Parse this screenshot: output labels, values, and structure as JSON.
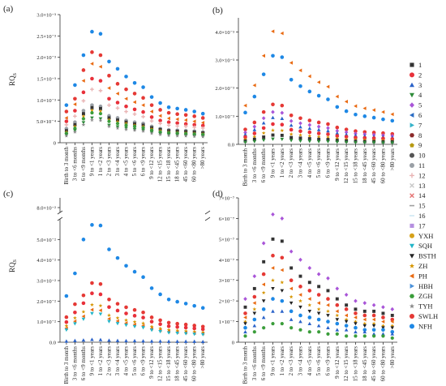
{
  "age_groups": [
    "Birth to 3 month",
    "3 to <6 months",
    "6 to <9 months",
    "9 to <1 years",
    "1 to <2 years",
    "2 to <3 years",
    "3 to <4 years",
    "4 to <5 years",
    "5 to <6 years",
    "6 to <9 years",
    "9 to <12 years",
    "12 to <15 years",
    "15 to <18 years",
    "18 to <45 years",
    "45 to <60 years",
    "60 to <80 years",
    ">80 years"
  ],
  "legend": [
    {
      "label": "1",
      "color": "#333333",
      "shape": "square"
    },
    {
      "label": "2",
      "color": "#e8303a",
      "shape": "circle"
    },
    {
      "label": "3",
      "color": "#2a62c9",
      "shape": "triangle-up"
    },
    {
      "label": "4",
      "color": "#2e8b3a",
      "shape": "triangle-down"
    },
    {
      "label": "5",
      "color": "#a955d8",
      "shape": "diamond"
    },
    {
      "label": "6",
      "color": "#2b6cc4",
      "shape": "triangle-left"
    },
    {
      "label": "7",
      "color": "#36b3c9",
      "shape": "triangle-right"
    },
    {
      "label": "8",
      "color": "#8b2a2a",
      "shape": "hexagon"
    },
    {
      "label": "9",
      "color": "#b79a12",
      "shape": "pentagon"
    },
    {
      "label": "10",
      "color": "#555555",
      "shape": "circle"
    },
    {
      "label": "11",
      "color": "#9aa0a6",
      "shape": "circle"
    },
    {
      "label": "12",
      "color": "#e9b4b4",
      "shape": "plus"
    },
    {
      "label": "13",
      "color": "#c8c8c8",
      "shape": "x"
    },
    {
      "label": "14",
      "color": "#e57373",
      "shape": "x"
    },
    {
      "label": "15",
      "color": "#a0a0a0",
      "shape": "dash"
    },
    {
      "label": "16",
      "color": "#cfe8f4",
      "shape": "dash"
    },
    {
      "label": "17",
      "color": "#b58fe0",
      "shape": "square"
    },
    {
      "label": "YXH",
      "color": "#d6a11a",
      "shape": "circle"
    },
    {
      "label": "SQH",
      "color": "#22b5c8",
      "shape": "triangle-down"
    },
    {
      "label": "BSTH",
      "color": "#222222",
      "shape": "triangle-down"
    },
    {
      "label": "ZH",
      "color": "#d59500",
      "shape": "star"
    },
    {
      "label": "PH",
      "color": "#e96a12",
      "shape": "triangle-left"
    },
    {
      "label": "HBH",
      "color": "#4a90d9",
      "shape": "triangle-right"
    },
    {
      "label": "ZGH",
      "color": "#3a9d3a",
      "shape": "hexagon"
    },
    {
      "label": "TYH",
      "color": "#8a8a8a",
      "shape": "star"
    },
    {
      "label": "SWLH",
      "color": "#e53935",
      "shape": "circle"
    },
    {
      "label": "NFH",
      "color": "#1e88e5",
      "shape": "circle"
    }
  ],
  "chart_data": [
    {
      "panel_label": "(a)",
      "type": "scatter",
      "ylabel": "RQS",
      "ylim": [
        0,
        0.003
      ],
      "yticks": [
        0,
        0.0005,
        0.001,
        0.0015,
        0.002,
        0.0025,
        0.003
      ],
      "ytick_labels": [
        "0",
        "5.0×10⁻⁴",
        "1.0×10⁻³",
        "1.5×10⁻³",
        "2.0×10⁻³",
        "2.5×10⁻³",
        "3.0×10⁻³"
      ],
      "series": [
        {
          "name": "NFH",
          "values": [
            0.00088,
            0.00135,
            0.00205,
            0.0026,
            0.00255,
            0.0019,
            0.00173,
            0.00155,
            0.0014,
            0.0013,
            0.00107,
            0.00093,
            0.00083,
            0.0008,
            0.00077,
            0.00073,
            0.00068
          ]
        },
        {
          "name": "SWLH",
          "values": [
            0.00073,
            0.00103,
            0.0017,
            0.00212,
            0.00205,
            0.00157,
            0.00138,
            0.00125,
            0.00115,
            0.00105,
            0.00088,
            0.00077,
            0.0007,
            0.00067,
            0.00065,
            0.00062,
            0.00058
          ]
        },
        {
          "name": "PH",
          "values": [
            0.00058,
            0.0009,
            0.00145,
            0.00185,
            0.00178,
            0.00128,
            0.00115,
            0.00103,
            0.00095,
            0.00088,
            0.00073,
            0.00063,
            0.00057,
            0.00055,
            0.00053,
            0.0005,
            0.00047
          ]
        },
        {
          "name": "2",
          "values": [
            0.0005,
            0.00075,
            0.00118,
            0.0015,
            0.00145,
            0.00103,
            0.00094,
            0.00085,
            0.00078,
            0.00072,
            0.0006,
            0.00052,
            0.00048,
            0.00046,
            0.00044,
            0.00042,
            0.0004
          ]
        },
        {
          "name": "12",
          "values": [
            0.00042,
            0.00062,
            0.00098,
            0.00125,
            0.00122,
            0.00088,
            0.00081,
            0.00073,
            0.00067,
            0.00061,
            0.00051,
            0.00045,
            0.00041,
            0.00039,
            0.00038,
            0.00036,
            0.00034
          ]
        },
        {
          "name": "11",
          "values": [
            0.00033,
            0.00048,
            0.00075,
            0.00088,
            0.00085,
            0.00063,
            0.00058,
            0.00052,
            0.00048,
            0.00045,
            0.00038,
            0.00033,
            0.0003,
            0.00029,
            0.00028,
            0.00027,
            0.00025
          ]
        },
        {
          "name": "1",
          "values": [
            0.00028,
            0.00042,
            0.00068,
            0.00082,
            0.0008,
            0.00058,
            0.00053,
            0.00048,
            0.00044,
            0.00041,
            0.00035,
            0.00031,
            0.00028,
            0.00027,
            0.00026,
            0.00025,
            0.00023
          ]
        },
        {
          "name": "ZH",
          "values": [
            0.00025,
            0.00038,
            0.00062,
            0.00076,
            0.00074,
            0.00054,
            0.00049,
            0.00045,
            0.00041,
            0.00038,
            0.00032,
            0.00028,
            0.00025,
            0.00024,
            0.00023,
            0.00022,
            0.00021
          ]
        },
        {
          "name": "ZGH",
          "values": [
            0.00022,
            0.00034,
            0.00056,
            0.0007,
            0.00068,
            0.0005,
            0.00045,
            0.00041,
            0.00038,
            0.00035,
            0.00029,
            0.00025,
            0.00023,
            0.00022,
            0.00021,
            0.0002,
            0.00019
          ]
        },
        {
          "name": "4",
          "values": [
            0.00018,
            0.00028,
            0.00047,
            0.00058,
            0.00056,
            0.00041,
            0.00037,
            0.00034,
            0.00031,
            0.00029,
            0.00024,
            0.00021,
            0.00019,
            0.00018,
            0.00017,
            0.00016,
            0.00015
          ]
        },
        {
          "name": "TYH",
          "values": [
            0.00016,
            0.00025,
            0.00042,
            0.00053,
            0.00052,
            0.00038,
            0.00034,
            0.00031,
            0.00029,
            0.00027,
            0.00022,
            0.00019,
            0.00017,
            0.00016,
            0.00016,
            0.00015,
            0.00014
          ]
        }
      ]
    },
    {
      "panel_label": "(b)",
      "type": "scatter",
      "ylabel": "",
      "ylim": [
        0,
        0.0045
      ],
      "yticks": [
        0,
        0.001,
        0.002,
        0.003,
        0.004
      ],
      "ytick_labels": [
        "0.0",
        "1.0×10⁻³",
        "2.0×10⁻³",
        "3.0×10⁻³",
        "4.0×10⁻³"
      ],
      "series": [
        {
          "name": "PH",
          "values": [
            0.00138,
            0.0021,
            0.00315,
            0.00402,
            0.00395,
            0.0029,
            0.00263,
            0.00242,
            0.00221,
            0.00205,
            0.0017,
            0.00152,
            0.00136,
            0.00128,
            0.00122,
            0.00115,
            0.00107
          ]
        },
        {
          "name": "NFH",
          "values": [
            0.00113,
            0.0017,
            0.00249,
            0.00315,
            0.0031,
            0.0023,
            0.00207,
            0.00188,
            0.00173,
            0.0016,
            0.00133,
            0.00118,
            0.00106,
            0.001,
            0.00095,
            0.00089,
            0.00084
          ]
        },
        {
          "name": "SWLH",
          "values": [
            0.00053,
            0.00078,
            0.00115,
            0.00142,
            0.00138,
            0.00103,
            0.00093,
            0.00085,
            0.00078,
            0.00072,
            0.0006,
            0.00053,
            0.00047,
            0.00044,
            0.00042,
            0.0004,
            0.00037
          ]
        },
        {
          "name": "5",
          "values": [
            0.00042,
            0.00063,
            0.00093,
            0.00115,
            0.00112,
            0.00083,
            0.00075,
            0.00069,
            0.00063,
            0.00058,
            0.00048,
            0.00043,
            0.00038,
            0.00036,
            0.00034,
            0.00032,
            0.0003
          ]
        },
        {
          "name": "3",
          "values": [
            0.00035,
            0.00052,
            0.00076,
            0.00095,
            0.00092,
            0.00068,
            0.00062,
            0.00057,
            0.00052,
            0.00048,
            0.0004,
            0.00035,
            0.00032,
            0.0003,
            0.00028,
            0.00027,
            0.00025
          ]
        },
        {
          "name": "2",
          "values": [
            0.00026,
            0.00039,
            0.00058,
            0.00072,
            0.0007,
            0.00052,
            0.00047,
            0.00043,
            0.00039,
            0.00036,
            0.0003,
            0.00027,
            0.00024,
            0.00023,
            0.00022,
            0.00021,
            0.00019
          ]
        },
        {
          "name": "ZH",
          "values": [
            0.00018,
            0.00027,
            0.0004,
            0.0005,
            0.00049,
            0.00036,
            0.00033,
            0.0003,
            0.00027,
            0.00025,
            0.00021,
            0.00018,
            0.00017,
            0.00016,
            0.00015,
            0.00014,
            0.00013
          ]
        },
        {
          "name": "1",
          "values": [
            0.00012,
            0.00018,
            0.00026,
            0.00033,
            0.00032,
            0.00024,
            0.00022,
            0.0002,
            0.00018,
            0.00017,
            0.00014,
            0.00012,
            0.00011,
            0.0001,
            0.0001,
            9e-05,
            9e-05
          ]
        },
        {
          "name": "4",
          "values": [
            7e-05,
            0.0001,
            0.00015,
            0.00019,
            0.00018,
            0.00014,
            0.00012,
            0.00011,
            0.0001,
            0.0001,
            8e-05,
            7e-05,
            6e-05,
            6e-05,
            6e-05,
            5e-05,
            5e-05
          ]
        }
      ]
    },
    {
      "panel_label": "(c)",
      "type": "scatter",
      "ylabel": "RQS",
      "ylim": [
        0,
        0.06
      ],
      "y_break": true,
      "upper_ylim": [
        0.075,
        0.09
      ],
      "yticks": [
        0,
        0.01,
        0.02,
        0.03,
        0.04,
        0.05
      ],
      "ytick_labels": [
        "0.0",
        "1.0×10⁻²",
        "2.0×10⁻²",
        "3.0×10⁻²",
        "4.0×10⁻²",
        "5.0×10⁻²"
      ],
      "upper_ytick_labels": [
        "8.0×10⁻²"
      ],
      "series": [
        {
          "name": "NFH",
          "values": [
            0.0225,
            0.0335,
            0.05,
            0.0622,
            0.0616,
            0.0452,
            0.041,
            0.0372,
            0.0343,
            0.0317,
            0.0263,
            0.0233,
            0.0208,
            0.0197,
            0.0188,
            0.0177,
            0.0167
          ]
        },
        {
          "name": "SWLH",
          "values": [
            0.0122,
            0.0185,
            0.0228,
            0.0288,
            0.0283,
            0.0208,
            0.0187,
            0.017,
            0.0157,
            0.0145,
            0.0121,
            0.0107,
            0.0095,
            0.009,
            0.0086,
            0.0081,
            0.0076
          ]
        },
        {
          "name": "2",
          "values": [
            0.0098,
            0.0145,
            0.019,
            0.0238,
            0.0233,
            0.0171,
            0.0154,
            0.014,
            0.0129,
            0.012,
            0.01,
            0.0088,
            0.0078,
            0.0074,
            0.0071,
            0.0067,
            0.0063
          ]
        },
        {
          "name": "ZH",
          "values": [
            0.008,
            0.0118,
            0.0148,
            0.0182,
            0.0178,
            0.0131,
            0.0118,
            0.0107,
            0.0099,
            0.0092,
            0.0076,
            0.0067,
            0.006,
            0.0057,
            0.0054,
            0.0051,
            0.0048
          ]
        },
        {
          "name": "PH",
          "values": [
            0.0068,
            0.0102,
            0.0126,
            0.0158,
            0.0155,
            0.0114,
            0.0103,
            0.0093,
            0.0086,
            0.008,
            0.0066,
            0.0058,
            0.0052,
            0.0049,
            0.0047,
            0.0044,
            0.0042
          ]
        },
        {
          "name": "SQH",
          "values": [
            0.006,
            0.009,
            0.0112,
            0.014,
            0.0137,
            0.0101,
            0.0091,
            0.0083,
            0.0076,
            0.0071,
            0.0059,
            0.0052,
            0.0046,
            0.0044,
            0.0042,
            0.0039,
            0.0037
          ]
        },
        {
          "name": "3",
          "values": [
            0.0005,
            0.0008,
            0.001,
            0.0013,
            0.0012,
            0.0009,
            0.0008,
            0.0007,
            0.0007,
            0.0006,
            0.0005,
            0.0005,
            0.0004,
            0.0004,
            0.0004,
            0.0004,
            0.0003
          ]
        }
      ]
    },
    {
      "panel_label": "(d)",
      "type": "scatter",
      "ylabel": "",
      "ylim": [
        0,
        7e-07
      ],
      "yticks": [
        0,
        1e-07,
        2e-07,
        3e-07,
        4e-07,
        5e-07,
        6e-07,
        7e-07
      ],
      "ytick_labels": [
        "0",
        "1×10⁻⁷",
        "2×10⁻⁷",
        "3×10⁻⁷",
        "4×10⁻⁷",
        "5×10⁻⁷",
        "6×10⁻⁷",
        "7×10⁻⁷"
      ],
      "series": [
        {
          "name": "5",
          "values": [
            2.1e-07,
            3.2e-07,
            4.8e-07,
            6.2e-07,
            6e-07,
            4.4e-07,
            4e-07,
            3.6e-07,
            3.3e-07,
            3.1e-07,
            2.6e-07,
            2.3e-07,
            2e-07,
            1.9e-07,
            1.8e-07,
            1.7e-07,
            1.6e-07
          ]
        },
        {
          "name": "1",
          "values": [
            1.7e-07,
            2.6e-07,
            3.9e-07,
            5e-07,
            4.9e-07,
            3.6e-07,
            3.2e-07,
            2.9e-07,
            2.7e-07,
            2.5e-07,
            2.1e-07,
            1.8e-07,
            1.6e-07,
            1.5e-07,
            1.5e-07,
            1.4e-07,
            1.3e-07
          ]
        },
        {
          "name": "SWLH",
          "values": [
            1.4e-07,
            2.2e-07,
            3.3e-07,
            4.2e-07,
            4.1e-07,
            3e-07,
            2.7e-07,
            2.5e-07,
            2.3e-07,
            2.1e-07,
            1.8e-07,
            1.6e-07,
            1.4e-07,
            1.3e-07,
            1.3e-07,
            1.2e-07,
            1.1e-07
          ]
        },
        {
          "name": "PH",
          "values": [
            1.2e-07,
            1.9e-07,
            2.8e-07,
            3.6e-07,
            3.5e-07,
            2.6e-07,
            2.3e-07,
            2.1e-07,
            1.9e-07,
            1.8e-07,
            1.5e-07,
            1.3e-07,
            1.2e-07,
            1.1e-07,
            1.1e-07,
            1e-07,
            1e-07
          ]
        },
        {
          "name": "ZH",
          "values": [
            1e-07,
            1.6e-07,
            2.4e-07,
            3e-07,
            2.9e-07,
            2.2e-07,
            2e-07,
            1.8e-07,
            1.6e-07,
            1.5e-07,
            1.3e-07,
            1.1e-07,
            1e-07,
            9e-08,
            9e-08,
            8e-08,
            8e-08
          ]
        },
        {
          "name": "BSTH",
          "values": [
            9e-08,
            1.4e-07,
            2e-07,
            2.6e-07,
            2.5e-07,
            1.9e-07,
            1.7e-07,
            1.5e-07,
            1.4e-07,
            1.3e-07,
            1.1e-07,
            1e-07,
            9e-08,
            8e-08,
            8e-08,
            7e-08,
            7e-08
          ]
        },
        {
          "name": "NFH",
          "values": [
            7e-08,
            1.1e-07,
            1.6e-07,
            2.1e-07,
            2e-07,
            1.5e-07,
            1.3e-07,
            1.2e-07,
            1.1e-07,
            1e-07,
            9e-08,
            8e-08,
            7e-08,
            6e-08,
            6e-08,
            6e-08,
            5e-08
          ]
        },
        {
          "name": "3",
          "values": [
            5e-08,
            8e-08,
            1.2e-07,
            1.5e-07,
            1.5e-07,
            1.1e-07,
            1e-07,
            9e-08,
            8e-08,
            7e-08,
            6e-08,
            6e-08,
            5e-08,
            5e-08,
            4e-08,
            4e-08,
            4e-08
          ]
        },
        {
          "name": "ZGH",
          "values": [
            3e-08,
            5e-08,
            7e-08,
            9e-08,
            9e-08,
            7e-08,
            6e-08,
            5e-08,
            5e-08,
            4e-08,
            4e-08,
            3e-08,
            3e-08,
            3e-08,
            3e-08,
            3e-08,
            2e-08
          ]
        }
      ]
    }
  ]
}
